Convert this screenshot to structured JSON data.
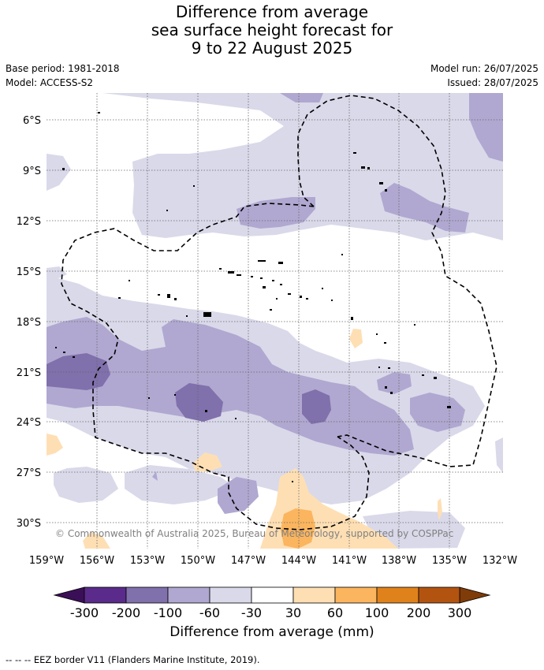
{
  "title": {
    "line1": "Difference from average",
    "line2": "sea surface height forecast for",
    "line3": "9 to 22 August 2025"
  },
  "meta": {
    "base_period": "Base period: 1981-2018",
    "model": "Model: ACCESS-S2",
    "model_run": "Model run: 26/07/2025",
    "issued": "Issued: 28/07/2025"
  },
  "map": {
    "lat_ticks": [
      "6°S",
      "9°S",
      "12°S",
      "15°S",
      "18°S",
      "21°S",
      "24°S",
      "27°S",
      "30°S"
    ],
    "lon_ticks": [
      "159°W",
      "156°W",
      "153°W",
      "150°W",
      "147°W",
      "144°W",
      "141°W",
      "138°W",
      "135°W",
      "132°W"
    ],
    "lat_range": [
      "4.5°S",
      "31.5°S"
    ],
    "lon_range": [
      "159°W",
      "132°W"
    ],
    "gridlines": true,
    "copyright": "© Commonwealth of Australia 2025, Bureau of Meteorology, supported by COSPPac",
    "feature_names": [
      "contour-fill",
      "eez-border",
      "island",
      "coastline"
    ]
  },
  "colorbar": {
    "title": "Difference from average (mm)",
    "tick_labels": [
      "-300",
      "-200",
      "-100",
      "-60",
      "-30",
      "30",
      "60",
      "100",
      "200",
      "300"
    ],
    "colors": [
      "#3b0f57",
      "#5a2b8a",
      "#8070ac",
      "#b0a8d0",
      "#d9d9ea",
      "#ffffff",
      "#fedfb4",
      "#fbb55e",
      "#e0821b",
      "#b25410",
      "#7f3b08"
    ],
    "extend": "both"
  },
  "footnote": "-- -- -- EEZ border V11 (Flanders Marine Institute, 2019)."
}
